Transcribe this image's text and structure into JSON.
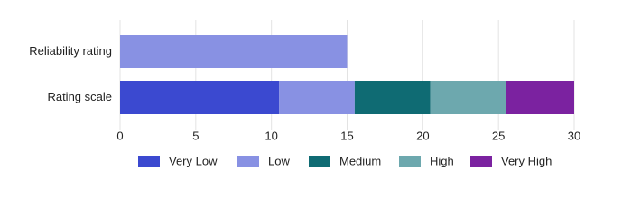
{
  "chart_data": {
    "type": "stacked-bar-horizontal",
    "categories": [
      "Reliability rating",
      "Rating scale"
    ],
    "series": [
      {
        "name": "Very Low",
        "color": "#3b49d0",
        "values": [
          null,
          10.5
        ]
      },
      {
        "name": "Low",
        "color": "#8891e3",
        "values": [
          15,
          5
        ]
      },
      {
        "name": "Medium",
        "color": "#0f6b73",
        "values": [
          null,
          5
        ]
      },
      {
        "name": "High",
        "color": "#6da8ae",
        "values": [
          null,
          5
        ]
      },
      {
        "name": "Very High",
        "color": "#7b22a0",
        "values": [
          null,
          4.5
        ]
      }
    ],
    "xlim": [
      0,
      30
    ],
    "xticks": [
      0,
      5,
      10,
      15,
      20,
      25,
      30
    ],
    "grid": true,
    "legend": "bottom"
  }
}
